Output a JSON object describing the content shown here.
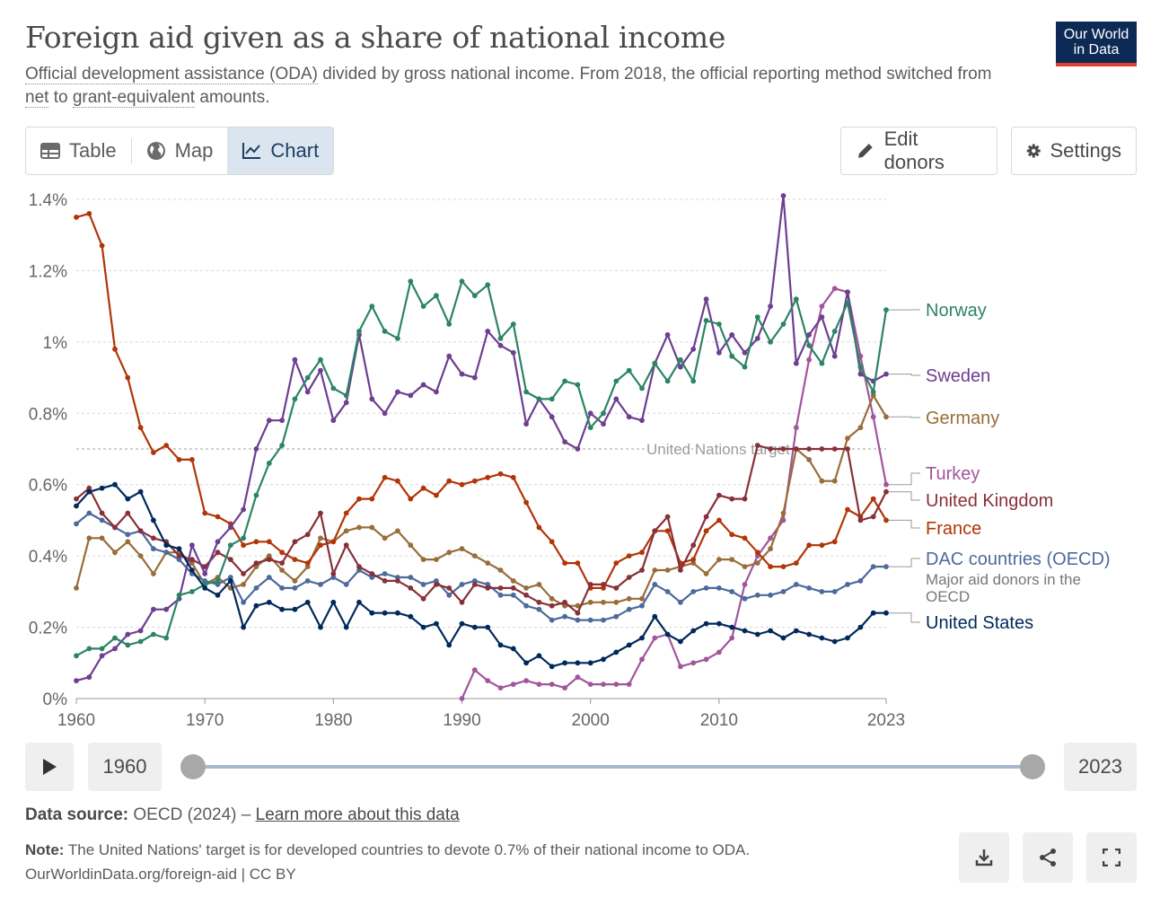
{
  "header": {
    "title": "Foreign aid given as a share of national income",
    "subtitle_link1": "Official development assistance (ODA)",
    "subtitle_part1": " divided by gross national income. From 2018, the official reporting method switched from ",
    "subtitle_link2": "net",
    "subtitle_part2": " to ",
    "subtitle_link3": "grant-equivalent",
    "subtitle_part3": " amounts.",
    "logo_line1": "Our World",
    "logo_line2": "in Data"
  },
  "tabs": {
    "table": "Table",
    "map": "Map",
    "chart": "Chart"
  },
  "buttons": {
    "edit_donors": "Edit donors",
    "settings": "Settings"
  },
  "timeline": {
    "start": "1960",
    "end": "2023"
  },
  "footer": {
    "source_label": "Data source:",
    "source_text": "OECD (2024) – ",
    "source_link": "Learn more about this data",
    "note_label": "Note:",
    "note_text": "The United Nations' target is for developed countries to devote 0.7% of their national income to ODA.",
    "credit": "OurWorldinData.org/foreign-aid | CC BY"
  },
  "colors": {
    "norway": "#2c8465",
    "sweden": "#6d3e91",
    "germany": "#996d39",
    "turkey": "#a2559c",
    "uk": "#883039",
    "france": "#b13507",
    "dac": "#4c6a9c",
    "us": "#00295b"
  },
  "chart_data": {
    "type": "line",
    "title": "Foreign aid given as a share of national income",
    "x_range": [
      1960,
      2023
    ],
    "ylim": [
      0,
      1.4
    ],
    "yticks": [
      0,
      0.2,
      0.4,
      0.6,
      0.8,
      1.0,
      1.2,
      1.4
    ],
    "ytick_labels": [
      "0%",
      "0.2%",
      "0.4%",
      "0.6%",
      "0.8%",
      "1%",
      "1.2%",
      "1.4%"
    ],
    "xticks": [
      1960,
      1970,
      1980,
      1990,
      2000,
      2010,
      2023
    ],
    "xtick_labels": [
      "1960",
      "1970",
      "1980",
      "1990",
      "2000",
      "2010",
      "2023"
    ],
    "reference_line": {
      "value": 0.7,
      "label": "United Nations target"
    },
    "annotation": "Major aid donors in the OECD",
    "series": [
      {
        "name": "Norway",
        "key": "norway",
        "start": 1960,
        "values": [
          0.12,
          0.14,
          0.14,
          0.17,
          0.15,
          0.16,
          0.18,
          0.17,
          0.29,
          0.3,
          0.32,
          0.33,
          0.43,
          0.45,
          0.57,
          0.66,
          0.71,
          0.84,
          0.9,
          0.95,
          0.87,
          0.85,
          1.03,
          1.1,
          1.03,
          1.01,
          1.17,
          1.1,
          1.13,
          1.05,
          1.17,
          1.13,
          1.16,
          1.01,
          1.05,
          0.86,
          0.84,
          0.84,
          0.89,
          0.88,
          0.76,
          0.8,
          0.89,
          0.92,
          0.87,
          0.94,
          0.89,
          0.95,
          0.89,
          1.06,
          1.05,
          0.96,
          0.93,
          1.07,
          1.0,
          1.05,
          1.12,
          0.99,
          0.94,
          1.03,
          1.11,
          0.93,
          0.86,
          1.09
        ]
      },
      {
        "name": "Sweden",
        "key": "sweden",
        "start": 1960,
        "values": [
          0.05,
          0.06,
          0.12,
          0.14,
          0.18,
          0.19,
          0.25,
          0.25,
          0.28,
          0.43,
          0.35,
          0.44,
          0.48,
          0.53,
          0.7,
          0.78,
          0.78,
          0.95,
          0.86,
          0.92,
          0.78,
          0.83,
          1.02,
          0.84,
          0.8,
          0.86,
          0.85,
          0.88,
          0.86,
          0.96,
          0.91,
          0.9,
          1.03,
          0.99,
          0.97,
          0.77,
          0.84,
          0.79,
          0.72,
          0.7,
          0.8,
          0.77,
          0.84,
          0.79,
          0.78,
          0.94,
          1.02,
          0.93,
          0.98,
          1.12,
          0.97,
          1.02,
          0.97,
          1.01,
          1.1,
          1.41,
          0.94,
          1.02,
          1.07,
          0.96,
          1.14,
          0.91,
          0.89,
          0.91
        ]
      },
      {
        "name": "Germany",
        "key": "germany",
        "start": 1960,
        "values": [
          0.31,
          0.45,
          0.45,
          0.41,
          0.44,
          0.4,
          0.35,
          0.41,
          0.41,
          0.38,
          0.32,
          0.34,
          0.31,
          0.32,
          0.37,
          0.4,
          0.36,
          0.33,
          0.37,
          0.45,
          0.44,
          0.47,
          0.48,
          0.48,
          0.45,
          0.47,
          0.43,
          0.39,
          0.39,
          0.41,
          0.42,
          0.4,
          0.38,
          0.36,
          0.33,
          0.31,
          0.32,
          0.28,
          0.26,
          0.26,
          0.27,
          0.27,
          0.27,
          0.28,
          0.28,
          0.36,
          0.36,
          0.37,
          0.38,
          0.35,
          0.39,
          0.39,
          0.37,
          0.38,
          0.42,
          0.52,
          0.7,
          0.67,
          0.61,
          0.61,
          0.73,
          0.76,
          0.85,
          0.79
        ]
      },
      {
        "name": "Turkey",
        "key": "turkey",
        "start": 1990,
        "values": [
          0.0,
          0.08,
          0.05,
          0.03,
          0.04,
          0.05,
          0.04,
          0.04,
          0.03,
          0.06,
          0.04,
          0.04,
          0.04,
          0.04,
          0.11,
          0.17,
          0.18,
          0.09,
          0.1,
          0.11,
          0.13,
          0.17,
          0.32,
          0.4,
          0.45,
          0.5,
          0.76,
          0.95,
          1.1,
          1.15,
          1.14,
          0.96,
          0.79,
          0.6
        ]
      },
      {
        "name": "United Kingdom",
        "key": "uk",
        "start": 1960,
        "values": [
          0.56,
          0.59,
          0.52,
          0.48,
          0.52,
          0.47,
          0.45,
          0.44,
          0.4,
          0.39,
          0.37,
          0.41,
          0.39,
          0.35,
          0.38,
          0.39,
          0.38,
          0.44,
          0.46,
          0.52,
          0.35,
          0.43,
          0.37,
          0.35,
          0.33,
          0.33,
          0.31,
          0.28,
          0.32,
          0.31,
          0.27,
          0.32,
          0.31,
          0.31,
          0.31,
          0.29,
          0.27,
          0.26,
          0.27,
          0.24,
          0.32,
          0.32,
          0.31,
          0.34,
          0.36,
          0.47,
          0.51,
          0.36,
          0.43,
          0.51,
          0.57,
          0.56,
          0.56,
          0.71,
          0.7,
          0.7,
          0.7,
          0.7,
          0.7,
          0.7,
          0.7,
          0.5,
          0.51,
          0.58
        ]
      },
      {
        "name": "France",
        "key": "france",
        "start": 1960,
        "values": [
          1.35,
          1.36,
          1.27,
          0.98,
          0.9,
          0.76,
          0.69,
          0.71,
          0.67,
          0.67,
          0.52,
          0.51,
          0.49,
          0.43,
          0.44,
          0.44,
          0.41,
          0.39,
          0.38,
          0.43,
          0.44,
          0.52,
          0.56,
          0.56,
          0.62,
          0.61,
          0.56,
          0.59,
          0.57,
          0.61,
          0.6,
          0.61,
          0.62,
          0.63,
          0.62,
          0.55,
          0.48,
          0.44,
          0.38,
          0.38,
          0.31,
          0.31,
          0.38,
          0.4,
          0.41,
          0.47,
          0.47,
          0.38,
          0.39,
          0.47,
          0.5,
          0.46,
          0.45,
          0.41,
          0.37,
          0.37,
          0.38,
          0.43,
          0.43,
          0.44,
          0.53,
          0.51,
          0.56,
          0.5
        ]
      },
      {
        "name": "DAC countries (OECD)",
        "key": "dac",
        "start": 1960,
        "values": [
          0.49,
          0.52,
          0.5,
          0.48,
          0.46,
          0.47,
          0.42,
          0.41,
          0.39,
          0.35,
          0.33,
          0.32,
          0.34,
          0.27,
          0.31,
          0.34,
          0.31,
          0.31,
          0.33,
          0.32,
          0.34,
          0.32,
          0.36,
          0.34,
          0.35,
          0.34,
          0.34,
          0.32,
          0.33,
          0.29,
          0.32,
          0.33,
          0.32,
          0.29,
          0.29,
          0.26,
          0.25,
          0.22,
          0.23,
          0.22,
          0.22,
          0.22,
          0.23,
          0.25,
          0.26,
          0.32,
          0.3,
          0.27,
          0.3,
          0.31,
          0.31,
          0.3,
          0.28,
          0.29,
          0.29,
          0.3,
          0.32,
          0.31,
          0.3,
          0.3,
          0.32,
          0.33,
          0.37,
          0.37
        ]
      },
      {
        "name": "United States",
        "key": "us",
        "start": 1960,
        "values": [
          0.54,
          0.58,
          0.59,
          0.6,
          0.56,
          0.58,
          0.5,
          0.43,
          0.42,
          0.36,
          0.31,
          0.29,
          0.33,
          0.2,
          0.26,
          0.27,
          0.25,
          0.25,
          0.27,
          0.2,
          0.27,
          0.2,
          0.27,
          0.24,
          0.24,
          0.24,
          0.23,
          0.2,
          0.21,
          0.15,
          0.21,
          0.2,
          0.2,
          0.15,
          0.14,
          0.1,
          0.12,
          0.09,
          0.1,
          0.1,
          0.1,
          0.11,
          0.13,
          0.15,
          0.17,
          0.23,
          0.18,
          0.16,
          0.19,
          0.21,
          0.21,
          0.2,
          0.19,
          0.18,
          0.19,
          0.17,
          0.19,
          0.18,
          0.17,
          0.16,
          0.17,
          0.2,
          0.24,
          0.24
        ]
      }
    ],
    "legend": [
      "Norway",
      "Sweden",
      "Germany",
      "Turkey",
      "United Kingdom",
      "France",
      "DAC countries (OECD)",
      "United States"
    ]
  }
}
